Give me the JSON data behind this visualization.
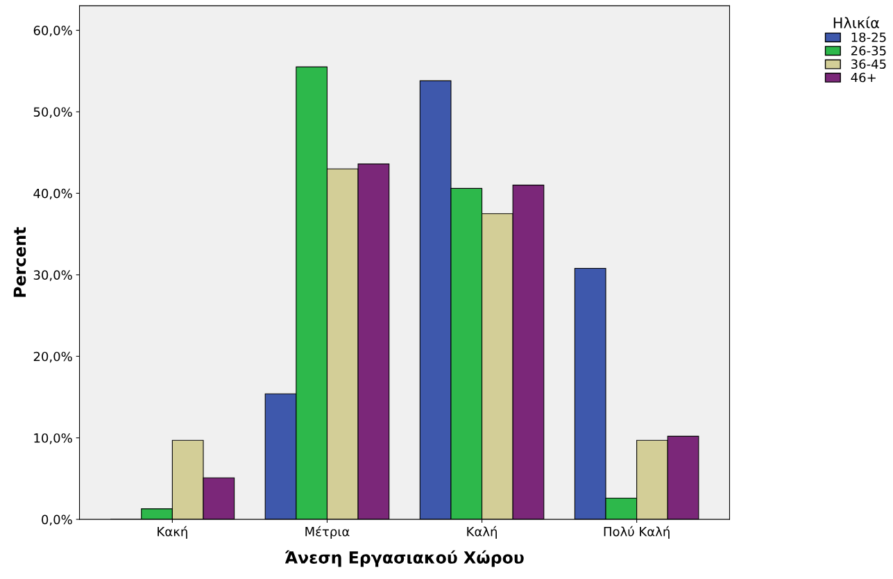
{
  "chart_data": {
    "type": "bar",
    "xlabel": "Άνεση Εργασιακού Χώρου",
    "ylabel": "Percent",
    "legend_title": "Ηλικία",
    "categories": [
      "Κακή",
      "Μέτρια",
      "Καλή",
      "Πολύ Καλή"
    ],
    "series": [
      {
        "name": "18-25",
        "color": "#3e58ac",
        "values": [
          0,
          15.4,
          53.8,
          30.8
        ]
      },
      {
        "name": "26-35",
        "color": "#2db84b",
        "values": [
          1.3,
          55.5,
          40.6,
          2.6
        ]
      },
      {
        "name": "36-45",
        "color": "#d3ce97",
        "values": [
          9.7,
          43.0,
          37.5,
          9.7
        ]
      },
      {
        "name": "46+",
        "color": "#7b2779",
        "values": [
          5.1,
          43.6,
          41.0,
          10.2
        ]
      }
    ],
    "ylim": [
      0,
      63
    ],
    "yticks": [
      {
        "value": 0,
        "label": "0,0%"
      },
      {
        "value": 10,
        "label": "10,0%"
      },
      {
        "value": 20,
        "label": "20,0%"
      },
      {
        "value": 30,
        "label": "30,0%"
      },
      {
        "value": 40,
        "label": "40,0%"
      },
      {
        "value": 50,
        "label": "50,0%"
      },
      {
        "value": 60,
        "label": "60,0%"
      }
    ],
    "grid": false,
    "legend": "top right"
  }
}
